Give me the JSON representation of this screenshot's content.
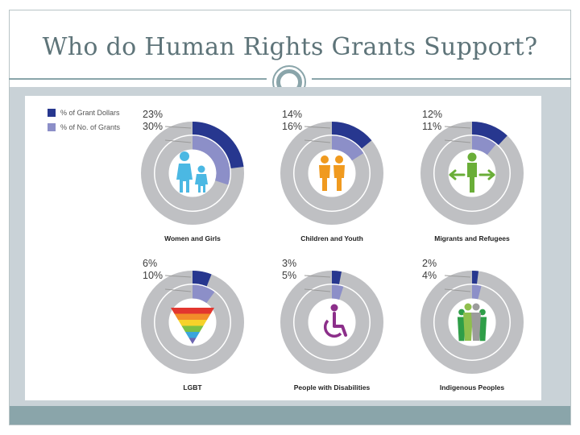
{
  "slide": {
    "title": "Who do Human Rights Grants Support?"
  },
  "legend": {
    "grant_dollars_label": "% of Grant Dollars",
    "num_grants_label": "% of No. of Grants",
    "grant_dollars_color": "#27378f",
    "num_grants_color": "#8c8fc8"
  },
  "colors": {
    "ring": "#bfc0c3",
    "accent": "#8aa5aa"
  },
  "chart_data": {
    "type": "donut",
    "title": "Who do Human Rights Grants Support?",
    "series": [
      {
        "name": "% of Grant Dollars",
        "unit": "%",
        "values": [
          23,
          14,
          12,
          6,
          3,
          2
        ]
      },
      {
        "name": "% of No. of Grants",
        "unit": "%",
        "values": [
          30,
          16,
          11,
          10,
          5,
          4
        ]
      }
    ],
    "categories": [
      {
        "label": "Women and Girls",
        "dollars_text": "23%",
        "grants_text": "30%",
        "dollars": 23,
        "grants": 30,
        "icon": "women-and-girls-icon"
      },
      {
        "label": "Children and Youth",
        "dollars_text": "14%",
        "grants_text": "16%",
        "dollars": 14,
        "grants": 16,
        "icon": "children-icon"
      },
      {
        "label": "Migrants and Refugees",
        "dollars_text": "12%",
        "grants_text": "11%",
        "dollars": 12,
        "grants": 11,
        "icon": "migrant-icon"
      },
      {
        "label": "LGBT",
        "dollars_text": "6%",
        "grants_text": "10%",
        "dollars": 6,
        "grants": 10,
        "icon": "rainbow-triangle-icon"
      },
      {
        "label": "People with Disabilities",
        "dollars_text": "3%",
        "grants_text": "5%",
        "dollars": 3,
        "grants": 5,
        "icon": "wheelchair-icon"
      },
      {
        "label": "Indigenous Peoples",
        "dollars_text": "2%",
        "grants_text": "4%",
        "dollars": 2,
        "grants": 4,
        "icon": "indigenous-group-icon"
      }
    ]
  }
}
